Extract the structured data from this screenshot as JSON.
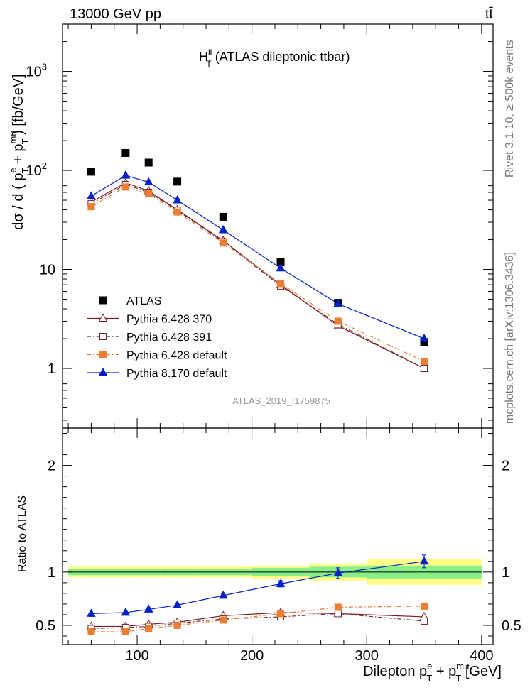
{
  "header": {
    "left": "13000 GeV pp",
    "right": "tt̄"
  },
  "side": {
    "rivet": "Rivet 3.1.10, ≥ 500k events",
    "mcplots": "mcplots.cern.ch [arXiv:1306.3436]"
  },
  "chart_data": [
    {
      "type": "line",
      "title": {
        "main": "H",
        "sup": "ll",
        "sub": "T",
        "rest": " (ATLAS dileptonic ttbar)"
      },
      "analysis_label": "ATLAS_2019_I1759875",
      "ylabel": "dσ / d ( p^e_T + p^mu_T ) [fb/GeV]",
      "yscale": "log",
      "ylim": [
        0.25,
        3000
      ],
      "xlim": [
        35,
        410
      ],
      "yticks": [
        {
          "value": 1,
          "label": "1"
        },
        {
          "value": 10,
          "label": "10"
        },
        {
          "value": 100,
          "label": "10",
          "sup": "2"
        },
        {
          "value": 1000,
          "label": "10",
          "sup": "3"
        }
      ],
      "legend_position": "bottom-left",
      "x": [
        60,
        90,
        110,
        135,
        175,
        225,
        275,
        350
      ],
      "series": [
        {
          "name": "ATLAS",
          "color": "#000000",
          "marker": "filled-square",
          "values": [
            97,
            150,
            120,
            77,
            34,
            11.8,
            4.6,
            1.85
          ]
        },
        {
          "name": "Pythia 6.428 370",
          "color": "#7b1c24",
          "marker": "open-triangle",
          "line": "solid",
          "values": [
            48,
            75,
            62,
            40,
            19.5,
            7.0,
            2.7,
            1.0
          ]
        },
        {
          "name": "Pythia 6.428 391",
          "color": "#6e2a2e",
          "marker": "open-square",
          "line": "dashdot",
          "values": [
            46,
            72,
            60,
            39.5,
            19.0,
            6.8,
            2.8,
            1.0
          ]
        },
        {
          "name": "Pythia 6.428 default",
          "color": "#ee7d31",
          "marker": "filled-square",
          "line": "dashdot",
          "values": [
            43,
            68,
            58,
            38,
            18.5,
            7.2,
            3.0,
            1.18
          ]
        },
        {
          "name": "Pythia 8.170 default",
          "color": "#0020c8",
          "marker": "filled-triangle",
          "line": "solid",
          "values": [
            55,
            89,
            76,
            50,
            25,
            10.3,
            4.5,
            2.0
          ]
        }
      ]
    },
    {
      "type": "line",
      "ylabel": "Ratio to ATLAS",
      "xlabel": "Dilepton p^e_T + p^mu_T [GeV]",
      "ylim": [
        0.32,
        2.35
      ],
      "xlim": [
        35,
        410
      ],
      "xticks": [
        100,
        200,
        300,
        400
      ],
      "yticks": [
        0.5,
        1,
        2
      ],
      "x": [
        60,
        90,
        110,
        135,
        175,
        225,
        275,
        350
      ],
      "bin_edges": [
        40,
        80,
        100,
        120,
        150,
        200,
        250,
        300,
        400
      ],
      "band_inner": [
        0.03,
        0.03,
        0.03,
        0.03,
        0.03,
        0.04,
        0.05,
        0.06
      ],
      "band_outer": [
        0.05,
        0.05,
        0.05,
        0.05,
        0.05,
        0.06,
        0.08,
        0.12
      ],
      "series": [
        {
          "name": "Pythia 6.428 370",
          "color": "#7b1c24",
          "marker": "open-triangle",
          "line": "solid",
          "values": [
            0.49,
            0.49,
            0.51,
            0.53,
            0.59,
            0.62,
            0.61,
            0.58
          ],
          "errors": [
            0.01,
            0.01,
            0.01,
            0.01,
            0.01,
            0.01,
            0.015,
            0.02
          ]
        },
        {
          "name": "Pythia 6.428 391",
          "color": "#6e2a2e",
          "marker": "open-square",
          "line": "dashdot",
          "values": [
            0.47,
            0.48,
            0.49,
            0.52,
            0.56,
            0.58,
            0.61,
            0.54
          ],
          "errors": [
            0.01,
            0.01,
            0.01,
            0.01,
            0.01,
            0.01,
            0.015,
            0.02
          ]
        },
        {
          "name": "Pythia 6.428 default",
          "color": "#ee7d31",
          "marker": "filled-square",
          "line": "dashdot",
          "values": [
            0.44,
            0.44,
            0.47,
            0.5,
            0.55,
            0.61,
            0.67,
            0.68
          ],
          "errors": [
            0.01,
            0.01,
            0.01,
            0.01,
            0.01,
            0.01,
            0.015,
            0.02
          ]
        },
        {
          "name": "Pythia 8.170 default",
          "color": "#0020c8",
          "marker": "filled-triangle",
          "line": "solid",
          "values": [
            0.61,
            0.62,
            0.65,
            0.69,
            0.78,
            0.89,
            0.99,
            1.1
          ],
          "errors": [
            0.01,
            0.01,
            0.015,
            0.015,
            0.015,
            0.03,
            0.05,
            0.06
          ]
        }
      ]
    }
  ]
}
